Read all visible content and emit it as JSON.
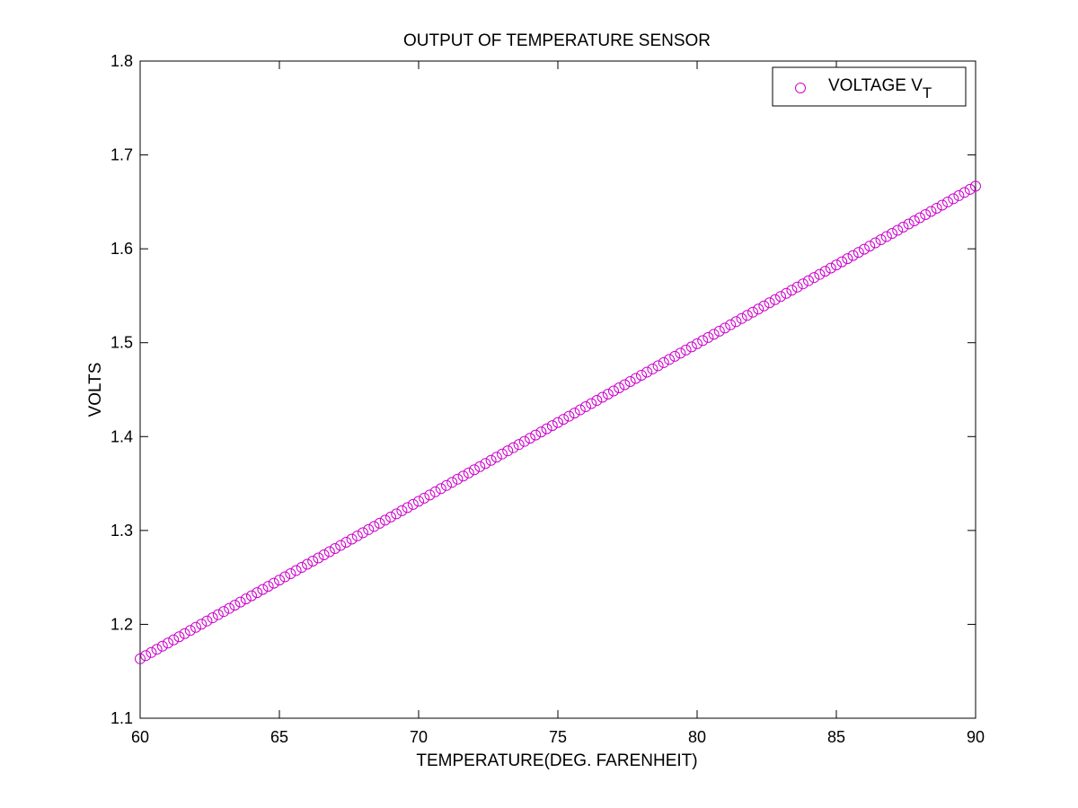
{
  "chart_data": {
    "type": "scatter",
    "title": "OUTPUT OF TEMPERATURE SENSOR",
    "xlabel": "TEMPERATURE(DEG. FARENHEIT)",
    "ylabel": "VOLTS",
    "xlim": [
      60,
      90
    ],
    "ylim": [
      1.1,
      1.8
    ],
    "xticks": [
      "60",
      "65",
      "70",
      "75",
      "80",
      "85",
      "90"
    ],
    "yticks": [
      "1.1",
      "1.2",
      "1.3",
      "1.4",
      "1.5",
      "1.6",
      "1.7",
      "1.8"
    ],
    "grid": false,
    "legend_position": "top-right",
    "marker": "open-circle",
    "series": [
      {
        "name": "VOLTAGE V",
        "name_subscript": "T",
        "color": "#cc00cc",
        "x_start": 60,
        "x_end": 90,
        "x_step": 0.2,
        "y_at_start": 1.1633,
        "y_at_end": 1.6667
      }
    ]
  }
}
